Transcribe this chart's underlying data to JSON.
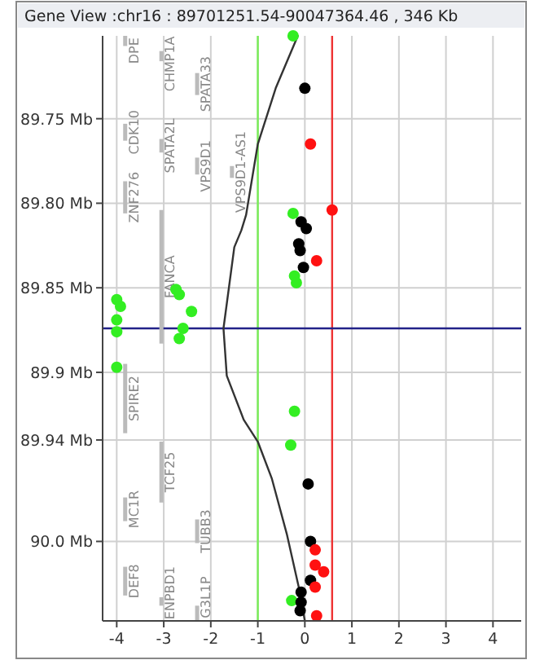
{
  "chart_data": {
    "type": "scatter",
    "title": "Gene View :chr16 : 89701251.54-90047364.46 , 346 Kb",
    "xlim": [
      -4.3,
      4.6
    ],
    "xticks": [
      -4,
      -3,
      -2,
      -1,
      0,
      1,
      2,
      3,
      4
    ],
    "ylim": [
      90.047,
      89.701
    ],
    "yticks": [
      {
        "value": 89.75,
        "label": "89.75 Mb"
      },
      {
        "value": 89.8,
        "label": "89.80 Mb"
      },
      {
        "value": 89.85,
        "label": "89.85 Mb"
      },
      {
        "value": 89.9,
        "label": "89.9 Mb"
      },
      {
        "value": 89.94,
        "label": "89.94 Mb"
      },
      {
        "value": 90.0,
        "label": "90.0 Mb"
      }
    ],
    "grid": true,
    "marker": "circle",
    "series": [
      {
        "type": "bar",
        "color": "#bbbbbb",
        "x": [
          -3.82
        ],
        "base": [
          89.701
        ],
        "values": [
          0.006
        ],
        "value_labels": [
          "DPE"
        ]
      },
      {
        "type": "bar",
        "color": "#bbbbbb",
        "x": [
          -3.82
        ],
        "base": [
          89.753
        ],
        "values": [
          0.01
        ],
        "value_labels": [
          "CDK10"
        ]
      },
      {
        "type": "bar",
        "color": "#bbbbbb",
        "x": [
          -3.82
        ],
        "base": [
          89.787
        ],
        "values": [
          0.019
        ],
        "value_labels": [
          "ZNF276"
        ]
      },
      {
        "type": "bar",
        "color": "#bbbbbb",
        "x": [
          -3.82
        ],
        "base": [
          89.895
        ],
        "values": [
          0.041
        ],
        "value_labels": [
          "SPIRE2"
        ]
      },
      {
        "type": "bar",
        "color": "#bbbbbb",
        "x": [
          -3.82
        ],
        "base": [
          89.974
        ],
        "values": [
          0.014
        ],
        "value_labels": [
          "MC1R"
        ]
      },
      {
        "type": "bar",
        "color": "#bbbbbb",
        "x": [
          -3.82
        ],
        "base": [
          90.015
        ],
        "values": [
          0.017
        ],
        "value_labels": [
          "DEF8"
        ]
      },
      {
        "type": "bar",
        "color": "#bbbbbb",
        "x": [
          -3.05
        ],
        "base": [
          89.71
        ],
        "values": [
          0.006
        ],
        "value_labels": [
          "CHMP1A"
        ]
      },
      {
        "type": "bar",
        "color": "#bbbbbb",
        "x": [
          -3.05
        ],
        "base": [
          89.762
        ],
        "values": [
          0.008
        ],
        "value_labels": [
          "SPATA2L"
        ]
      },
      {
        "type": "bar",
        "color": "#bbbbbb",
        "x": [
          -3.05
        ],
        "base": [
          89.804
        ],
        "values": [
          0.079
        ],
        "value_labels": [
          "FANCA"
        ]
      },
      {
        "type": "bar",
        "color": "#bbbbbb",
        "x": [
          -3.05
        ],
        "base": [
          89.941
        ],
        "values": [
          0.036
        ],
        "value_labels": [
          "TCF25"
        ]
      },
      {
        "type": "bar",
        "color": "#bbbbbb",
        "x": [
          -3.05
        ],
        "base": [
          90.033
        ],
        "values": [
          0.005
        ],
        "value_labels": [
          "ENPBD1"
        ]
      },
      {
        "type": "bar",
        "color": "#bbbbbb",
        "x": [
          -2.29
        ],
        "base": [
          89.723
        ],
        "values": [
          0.013
        ],
        "value_labels": [
          "SPATA33"
        ]
      },
      {
        "type": "bar",
        "color": "#bbbbbb",
        "x": [
          -2.29
        ],
        "base": [
          89.773
        ],
        "values": [
          0.01
        ],
        "value_labels": [
          "VPS9D1"
        ]
      },
      {
        "type": "bar",
        "color": "#bbbbbb",
        "x": [
          -2.29
        ],
        "base": [
          89.987
        ],
        "values": [
          0.014
        ],
        "value_labels": [
          "TUBB3"
        ]
      },
      {
        "type": "bar",
        "color": "#bbbbbb",
        "x": [
          -2.29
        ],
        "base": [
          90.038
        ],
        "values": [
          0.009
        ],
        "value_labels": [
          "G3L1P"
        ]
      },
      {
        "type": "bar",
        "color": "#bbbbbb",
        "x": [
          -1.55
        ],
        "base": [
          89.778
        ],
        "values": [
          0.007
        ],
        "value_labels": [
          "VPS9D1-AS1"
        ]
      },
      {
        "color": "#33ee22",
        "x": [
          -0.25,
          -0.25,
          -0.22,
          -0.18,
          -2.74,
          -2.67,
          -4,
          -3.92,
          -2.41,
          -4,
          -2.59,
          -4,
          -2.67,
          -4,
          -0.22,
          -0.3,
          -0.28
        ],
        "values": [
          89.701,
          89.806,
          89.843,
          89.847,
          89.851,
          89.854,
          89.857,
          89.861,
          89.864,
          89.869,
          89.874,
          89.876,
          89.88,
          89.897,
          89.923,
          89.943,
          90.035
        ]
      },
      {
        "color": "#000000",
        "x": [
          0,
          -0.08,
          0.03,
          -0.13,
          -0.1,
          -0.03,
          0.07,
          0.12,
          0.12,
          -0.08,
          -0.08,
          -0.1
        ],
        "values": [
          89.732,
          89.811,
          89.815,
          89.824,
          89.828,
          89.838,
          89.966,
          90.0,
          90.023,
          90.03,
          90.036,
          90.041
        ]
      },
      {
        "color": "#ff1111",
        "x": [
          0.12,
          0.58,
          0.25,
          0.22,
          0.22,
          0.4,
          0.22,
          0.25
        ],
        "values": [
          89.765,
          89.804,
          89.834,
          90.005,
          90.014,
          90.018,
          90.027,
          90.044
        ]
      },
      {
        "type": "line",
        "color": "#333333",
        "marker": "none",
        "x": [
          -0.15,
          -0.62,
          -1,
          -1.25,
          -1.35,
          -1.5,
          -1.73,
          -1.66,
          -1.3,
          -1,
          -0.7,
          -0.38,
          -0.13,
          0
        ],
        "values": [
          89.701,
          89.732,
          89.765,
          89.807,
          89.816,
          89.826,
          89.874,
          89.902,
          89.928,
          89.941,
          89.963,
          89.996,
          90.027,
          90.047
        ]
      }
    ],
    "ref_lines": [
      {
        "axis": "x",
        "value": -1,
        "color": "#77ee55"
      },
      {
        "axis": "x",
        "value": 0.58,
        "color": "#ee3333"
      },
      {
        "axis": "y",
        "value": 89.874,
        "color": "#222288"
      }
    ]
  }
}
